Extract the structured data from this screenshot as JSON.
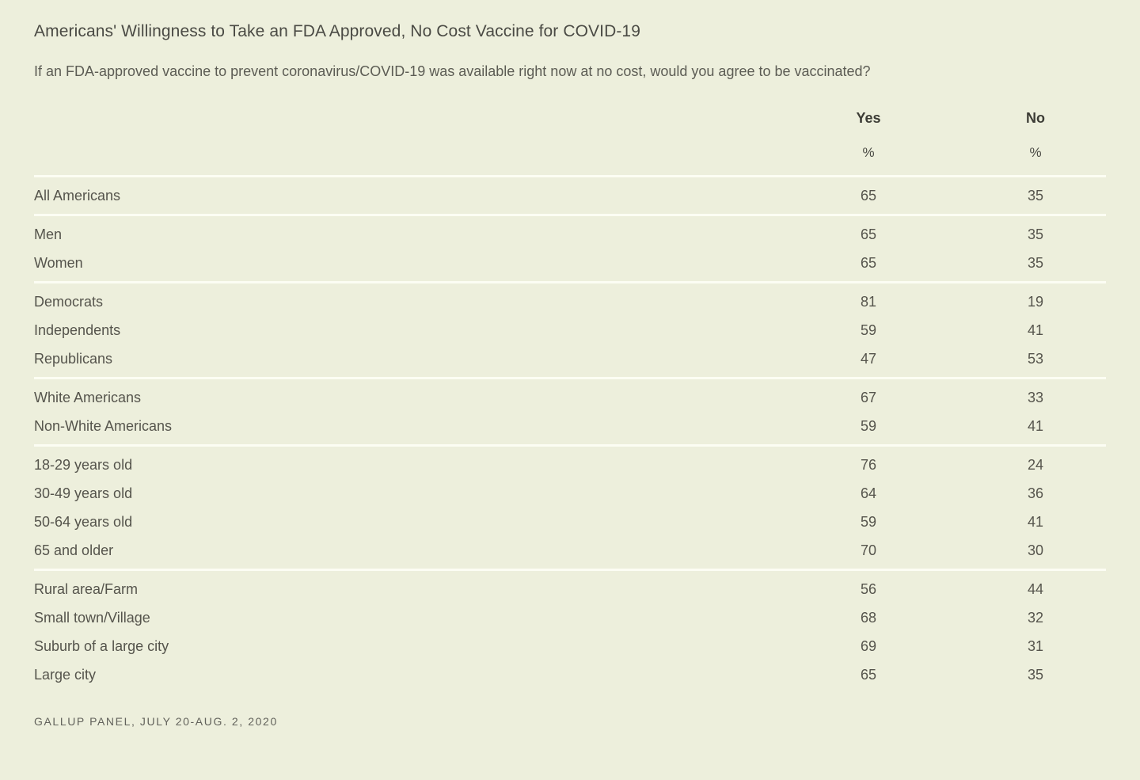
{
  "colors": {
    "background": "#edefdc",
    "separator_line": "#fcfdf3",
    "body_text": "#55544c",
    "heading_text": "#3c3c35"
  },
  "chart_data": {
    "type": "table",
    "title": "Americans' Willingness to Take an FDA Approved, No Cost Vaccine for COVID-19",
    "subtitle": "If an FDA-approved vaccine to prevent coronavirus/COVID-19 was available right now at no cost, would you agree to be vaccinated?",
    "columns": [
      "Yes",
      "No"
    ],
    "unit": "%",
    "groups": [
      {
        "name": "all",
        "rows": [
          {
            "label": "All Americans",
            "yes": 65,
            "no": 35
          }
        ]
      },
      {
        "name": "gender",
        "rows": [
          {
            "label": "Men",
            "yes": 65,
            "no": 35
          },
          {
            "label": "Women",
            "yes": 65,
            "no": 35
          }
        ]
      },
      {
        "name": "party",
        "rows": [
          {
            "label": "Democrats",
            "yes": 81,
            "no": 19
          },
          {
            "label": "Independents",
            "yes": 59,
            "no": 41
          },
          {
            "label": "Republicans",
            "yes": 47,
            "no": 53
          }
        ]
      },
      {
        "name": "race",
        "rows": [
          {
            "label": "White Americans",
            "yes": 67,
            "no": 33
          },
          {
            "label": "Non-White Americans",
            "yes": 59,
            "no": 41
          }
        ]
      },
      {
        "name": "age",
        "rows": [
          {
            "label": "18-29 years old",
            "yes": 76,
            "no": 24
          },
          {
            "label": "30-49 years old",
            "yes": 64,
            "no": 36
          },
          {
            "label": "50-64 years old",
            "yes": 59,
            "no": 41
          },
          {
            "label": "65 and older",
            "yes": 70,
            "no": 30
          }
        ]
      },
      {
        "name": "community",
        "rows": [
          {
            "label": "Rural area/Farm",
            "yes": 56,
            "no": 44
          },
          {
            "label": "Small town/Village",
            "yes": 68,
            "no": 32
          },
          {
            "label": "Suburb of a large city",
            "yes": 69,
            "no": 31
          },
          {
            "label": "Large city",
            "yes": 65,
            "no": 35
          }
        ]
      }
    ],
    "source": "GALLUP PANEL, JULY 20-AUG. 2, 2020"
  }
}
